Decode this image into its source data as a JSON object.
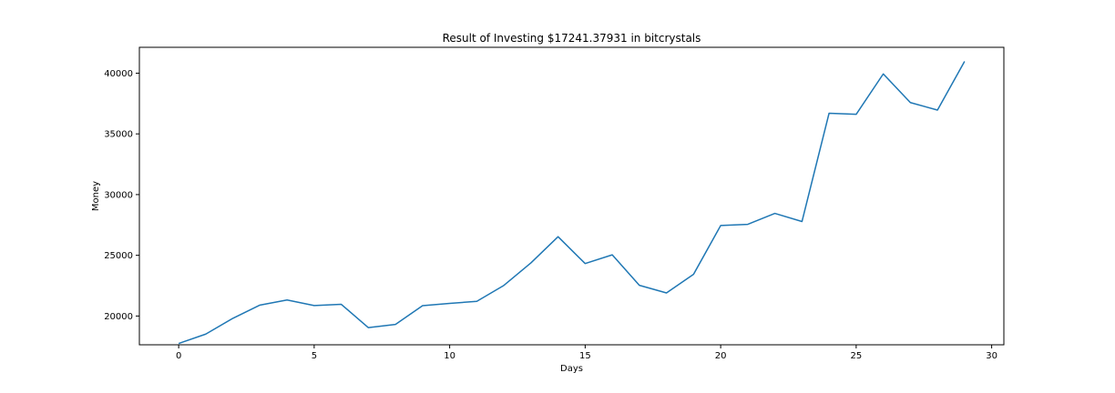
{
  "chart_data": {
    "type": "line",
    "title": "Result of Investing $17241.37931 in bitcrystals",
    "xlabel": "Days",
    "ylabel": "Money",
    "xlim": [
      -1.45,
      30.45
    ],
    "ylim": [
      17630,
      42130
    ],
    "xticks": [
      0,
      5,
      10,
      15,
      20,
      25,
      30
    ],
    "yticks": [
      20000,
      25000,
      30000,
      35000,
      40000
    ],
    "grid": false,
    "line_color": "#1f77b4",
    "series": [
      {
        "x": [
          0,
          1,
          2,
          3,
          4,
          5,
          6,
          7,
          8,
          9,
          10,
          11,
          12,
          13,
          14,
          15,
          16,
          17,
          18,
          19,
          20,
          21,
          22,
          23,
          24,
          25,
          26,
          27,
          28,
          29
        ],
        "values": [
          17740,
          18510,
          19810,
          20900,
          21320,
          20860,
          20960,
          19040,
          19310,
          20850,
          21040,
          21210,
          22520,
          24380,
          26530,
          24320,
          25040,
          22530,
          21900,
          23440,
          27450,
          27550,
          28450,
          27780,
          36700,
          36610,
          39940,
          37580,
          36960,
          40970
        ]
      }
    ]
  }
}
